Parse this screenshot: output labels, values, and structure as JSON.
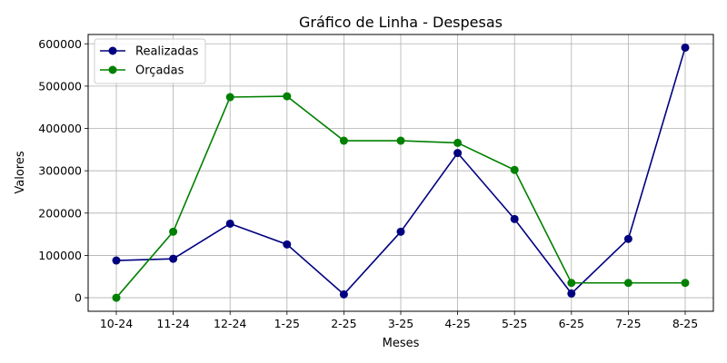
{
  "chart_data": {
    "type": "line",
    "title": "Gráfico de Linha - Despesas",
    "xlabel": "Meses",
    "ylabel": "Valores",
    "categories": [
      "10-24",
      "11-24",
      "12-24",
      "1-25",
      "2-25",
      "3-25",
      "4-25",
      "5-25",
      "6-25",
      "7-25",
      "8-25"
    ],
    "ylim": [
      -32000,
      622000
    ],
    "yticks": [
      0,
      100000,
      200000,
      300000,
      400000,
      500000,
      600000
    ],
    "grid": true,
    "legend_position": "top-left",
    "series": [
      {
        "name": "Realizadas",
        "color": "#000080",
        "values": [
          88000,
          92000,
          175000,
          126000,
          8000,
          156000,
          342000,
          186000,
          10000,
          139000,
          591000
        ]
      },
      {
        "name": "Orçadas",
        "color": "#008000",
        "values": [
          0,
          156000,
          474000,
          476000,
          371000,
          371000,
          366000,
          302000,
          35000,
          35000,
          35000
        ]
      }
    ]
  }
}
